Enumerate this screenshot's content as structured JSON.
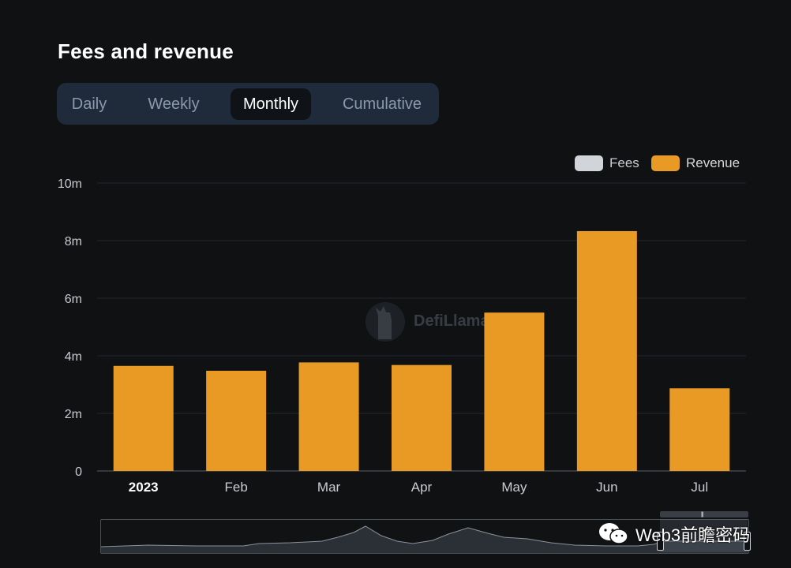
{
  "header": {
    "title": "Fees and revenue"
  },
  "tabs": [
    {
      "label": "Daily",
      "active": false
    },
    {
      "label": "Weekly",
      "active": false
    },
    {
      "label": "Monthly",
      "active": true
    },
    {
      "label": "Cumulative",
      "active": false
    }
  ],
  "legend": [
    {
      "name": "Fees",
      "color": "#d1d4d9"
    },
    {
      "name": "Revenue",
      "color": "#e89a25"
    }
  ],
  "watermark": {
    "text": "DefiLlama"
  },
  "credit": {
    "text": "Web3前瞻密码",
    "icon": "wechat-icon"
  },
  "chart_data": {
    "type": "bar",
    "categories": [
      "2023",
      "Feb",
      "Mar",
      "Apr",
      "May",
      "Jun",
      "Jul"
    ],
    "series": [
      {
        "name": "Revenue",
        "color": "#e89a25",
        "values": [
          3.65,
          3.48,
          3.77,
          3.68,
          5.5,
          8.33,
          2.87
        ]
      }
    ],
    "y_ticks": [
      "0",
      "2m",
      "4m",
      "6m",
      "8m",
      "10m"
    ],
    "ylim": [
      0,
      10
    ],
    "y_unit": "m",
    "grid": true,
    "legend_position": "top-right"
  }
}
